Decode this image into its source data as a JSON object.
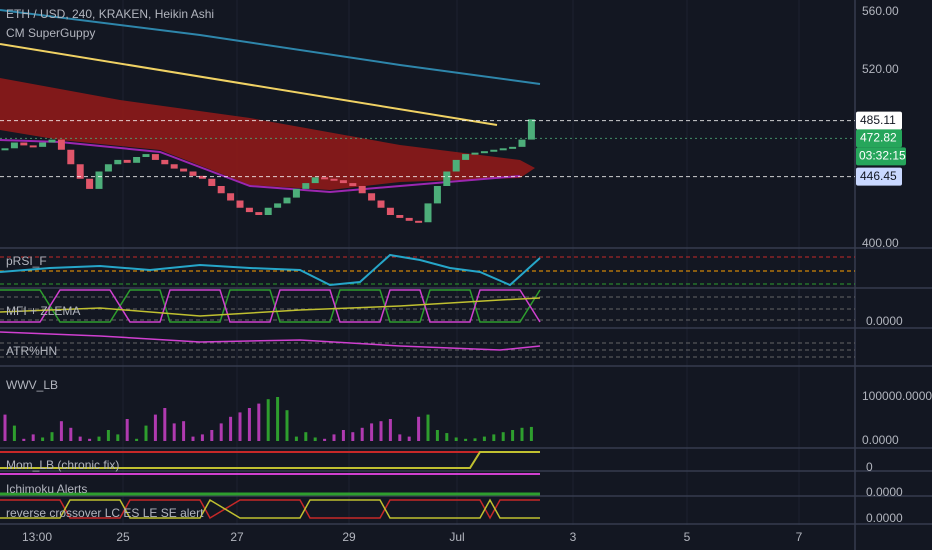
{
  "header": {
    "title": "ETH / USD, 240, KRAKEN, Heikin Ashi",
    "indicator": "CM SuperGuppy"
  },
  "price_axis": {
    "ylim": [
      400,
      560
    ],
    "ticks": [
      {
        "value": 560,
        "label": "560.00"
      },
      {
        "value": 520,
        "label": "520.00"
      },
      {
        "value": 400,
        "label": "400.00"
      }
    ]
  },
  "price_tags": [
    {
      "value": 485.11,
      "color": "#ffffff"
    },
    {
      "value": 472.82,
      "color": "#26a65b"
    },
    {
      "value": 446.45,
      "color": "#c9d8ff"
    }
  ],
  "countdown": "03:32:15",
  "candles": [
    466,
    470,
    468,
    467,
    470,
    472,
    465,
    455,
    445,
    438,
    450,
    455,
    458,
    456,
    460,
    462,
    458,
    455,
    452,
    450,
    447,
    445,
    440,
    435,
    430,
    425,
    422,
    420,
    425,
    428,
    432,
    438,
    442,
    446,
    445,
    444,
    442,
    440,
    435,
    430,
    425,
    420,
    418,
    416,
    415,
    428,
    440,
    450,
    458,
    462,
    463,
    464,
    465,
    466,
    467,
    472,
    486
  ],
  "panes": [
    {
      "label": "pRSI_F"
    },
    {
      "label": "MFI + ZLEMA",
      "axis_label": "0.0000"
    },
    {
      "label": "ATR%HN"
    },
    {
      "label": "WWV_LB",
      "ylim": [
        0,
        100000
      ],
      "ticks": [
        {
          "value": 100000,
          "label": "100000.0000"
        },
        {
          "value": 0,
          "label": "0.0000"
        }
      ],
      "values": [
        60000,
        35000,
        5000,
        15000,
        8000,
        20000,
        45000,
        30000,
        10000,
        5000,
        10000,
        25000,
        15000,
        50000,
        5000,
        35000,
        60000,
        75000,
        40000,
        45000,
        10000,
        15000,
        25000,
        40000,
        55000,
        65000,
        75000,
        85000,
        95000,
        100000,
        70000,
        10000,
        20000,
        8000,
        5000,
        15000,
        25000,
        20000,
        30000,
        40000,
        45000,
        50000,
        15000,
        10000,
        55000,
        60000,
        25000,
        18000,
        8000,
        5000,
        6000,
        10000,
        15000,
        20000,
        25000,
        30000,
        32000
      ]
    },
    {
      "label": "Mom_LB (chronic fix)",
      "axis_label": "0"
    },
    {
      "label": "Ichimoku Alerts",
      "axis_label": "0.0000"
    },
    {
      "label": "reverse crossover LC ES LE SE alert",
      "axis_label": "0.0000"
    }
  ],
  "x_axis": [
    "13:00",
    "25",
    "27",
    "29",
    "Jul",
    "3",
    "5",
    "7"
  ]
}
